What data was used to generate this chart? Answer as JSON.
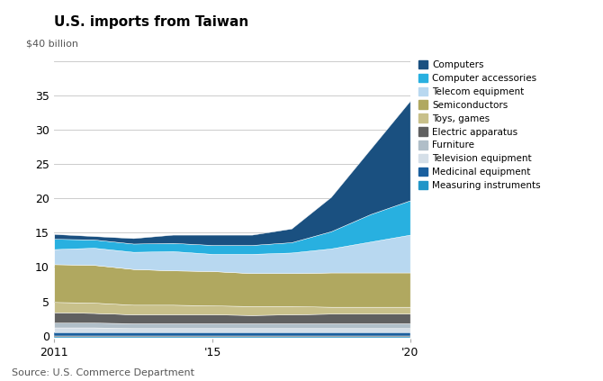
{
  "title": "U.S. imports from Taiwan",
  "subtitle": "$40 billion",
  "source": "Source: U.S. Commerce Department",
  "years": [
    2011,
    2012,
    2013,
    2014,
    2015,
    2016,
    2017,
    2018,
    2019,
    2020
  ],
  "categories": [
    "Measuring instruments",
    "Medicinal equipment",
    "Television equipment",
    "Furniture",
    "Electric apparatus",
    "Toys, games",
    "Semiconductors",
    "Telecom equipment",
    "Computer accessories",
    "Computers"
  ],
  "colors": [
    "#2196c8",
    "#1a5f9e",
    "#d5dfe8",
    "#b0bec8",
    "#606060",
    "#c8c08a",
    "#b0a860",
    "#b8d8f0",
    "#28b0e0",
    "#1a5080"
  ],
  "data": {
    "Measuring instruments": [
      -0.3,
      -0.3,
      -0.3,
      -0.3,
      -0.3,
      -0.3,
      -0.3,
      -0.3,
      -0.3,
      -0.3
    ],
    "Medicinal equipment": [
      0.5,
      0.5,
      0.5,
      0.5,
      0.5,
      0.5,
      0.5,
      0.5,
      0.5,
      0.5
    ],
    "Television equipment": [
      0.7,
      0.7,
      0.6,
      0.6,
      0.6,
      0.6,
      0.6,
      0.6,
      0.6,
      0.6
    ],
    "Furniture": [
      0.7,
      0.7,
      0.7,
      0.7,
      0.7,
      0.7,
      0.7,
      0.7,
      0.7,
      0.7
    ],
    "Electric apparatus": [
      1.5,
      1.4,
      1.3,
      1.3,
      1.3,
      1.2,
      1.3,
      1.4,
      1.4,
      1.4
    ],
    "Toys, games": [
      1.5,
      1.5,
      1.4,
      1.4,
      1.3,
      1.3,
      1.2,
      1.0,
      1.0,
      1.0
    ],
    "Semiconductors": [
      5.5,
      5.5,
      5.2,
      5.0,
      5.0,
      4.8,
      4.8,
      5.0,
      5.0,
      5.0
    ],
    "Telecom equipment": [
      2.2,
      2.5,
      2.5,
      2.8,
      2.5,
      2.8,
      3.0,
      3.5,
      4.5,
      5.5
    ],
    "Computer accessories": [
      1.5,
      1.2,
      1.2,
      1.2,
      1.3,
      1.3,
      1.5,
      2.5,
      4.0,
      5.0
    ],
    "Computers": [
      0.7,
      0.5,
      0.8,
      1.2,
      1.5,
      1.5,
      2.0,
      5.0,
      9.5,
      14.5
    ]
  },
  "ylim": [
    -0.5,
    40
  ],
  "yticks": [
    0,
    5,
    10,
    15,
    20,
    25,
    30,
    35
  ],
  "xtick_labels": [
    "2011",
    "'15",
    "'20"
  ],
  "xtick_positions": [
    2011,
    2015,
    2020
  ],
  "background_color": "#ffffff",
  "grid_color": "#cccccc"
}
